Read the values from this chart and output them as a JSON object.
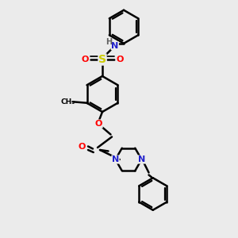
{
  "background_color": "#ebebeb",
  "bond_color": "#000000",
  "bond_width": 1.8,
  "atom_colors": {
    "N": "#2020cc",
    "O": "#ff0000",
    "S": "#cccc00",
    "H": "#606060",
    "C": "#000000"
  },
  "font_size_atom": 8,
  "font_size_small": 6.5,
  "figsize": [
    3.0,
    3.0
  ],
  "dpi": 100,
  "xlim": [
    0.5,
    3.5
  ],
  "ylim": [
    0.0,
    4.0
  ]
}
